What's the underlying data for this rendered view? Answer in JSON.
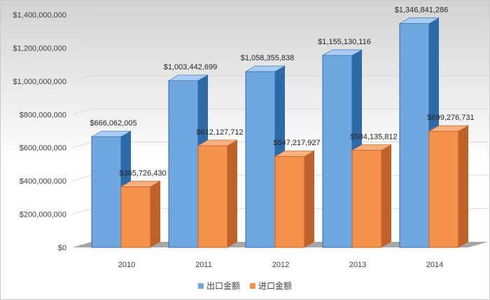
{
  "chart_data": {
    "type": "bar",
    "title": "",
    "xlabel": "",
    "ylabel": "",
    "categories": [
      "2010",
      "2011",
      "2012",
      "2013",
      "2014"
    ],
    "series": [
      {
        "name": "出口金额",
        "values": [
          666062005,
          1003442699,
          1058355838,
          1155130116,
          1346841286
        ]
      },
      {
        "name": "进口金额",
        "values": [
          365726430,
          612127712,
          547217927,
          584135812,
          699276731
        ]
      }
    ],
    "data_labels": [
      [
        "$666,062,005",
        "$1,003,442,699",
        "$1,058,355,838",
        "$1,155,130,116",
        "$1,346,841,286"
      ],
      [
        "$365,726,430",
        "$612,127,712",
        "$547,217,927",
        "$584,135,812",
        "$699,276,731"
      ]
    ],
    "y_ticks": [
      0,
      200000000,
      400000000,
      600000000,
      800000000,
      1000000000,
      1200000000,
      1400000000
    ],
    "y_tick_labels": [
      "$0",
      "$200,000,000",
      "$400,000,000",
      "$600,000,000",
      "$800,000,000",
      "$1,000,000,000",
      "$1,200,000,000",
      "$1,400,000,000"
    ],
    "ylim": [
      0,
      1400000000
    ],
    "grid": true,
    "legend_position": "bottom",
    "colors": {
      "series1_face": "#6fa8e0",
      "series1_side": "#2f6aa8",
      "series1_top": "#a9cdf2",
      "series2_face": "#f4914a",
      "series2_side": "#c0612a",
      "series2_top": "#f8b07e"
    }
  }
}
